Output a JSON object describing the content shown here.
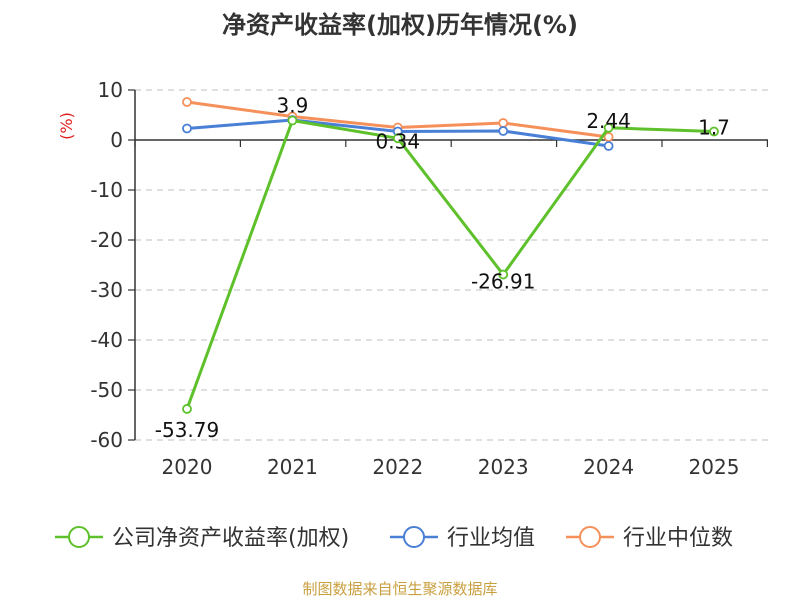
{
  "title": "净资产收益率(加权)历年情况(%)",
  "unit_label": "(%)",
  "source": "制图数据来自恒生聚源数据库",
  "colors": {
    "company": "#5ec12b",
    "industry_avg": "#4a7fd6",
    "industry_median": "#f5905a",
    "grid": "#cccccc",
    "axis": "#333333",
    "unit": "#e02020",
    "source": "#c9a040"
  },
  "chart_data": {
    "type": "line",
    "title": "净资产收益率(加权)历年情况(%)",
    "ylabel": "(%)",
    "xlabel": "",
    "categories": [
      "2020",
      "2021",
      "2022",
      "2023",
      "2024",
      "2025"
    ],
    "ylim": [
      -60,
      10
    ],
    "yticks": [
      10,
      0,
      -10,
      -20,
      -30,
      -40,
      -50,
      -60
    ],
    "grid": true,
    "legend_position": "bottom",
    "series": [
      {
        "name": "公司净资产收益率(加权)",
        "color": "#5ec12b",
        "values": [
          -53.79,
          3.9,
          0.34,
          -26.91,
          2.44,
          1.7
        ],
        "labels": [
          "-53.79",
          "3.9",
          "0.34",
          "-26.91",
          "2.44",
          "1.7"
        ]
      },
      {
        "name": "行业均值",
        "color": "#4a7fd6",
        "values": [
          2.3,
          4.0,
          1.7,
          1.8,
          -1.2,
          null
        ]
      },
      {
        "name": "行业中位数",
        "color": "#f5905a",
        "values": [
          7.6,
          4.7,
          2.5,
          3.4,
          0.6,
          null
        ]
      }
    ]
  }
}
